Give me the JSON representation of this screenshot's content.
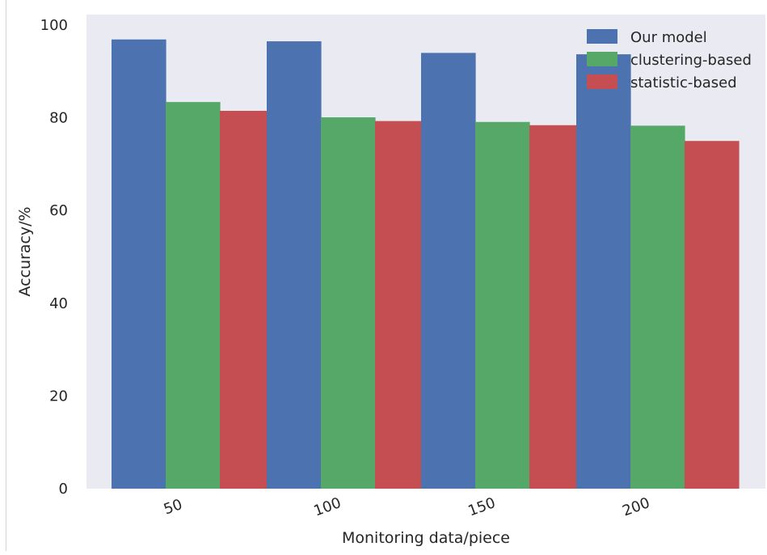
{
  "chart_data": {
    "type": "bar",
    "title": "",
    "xlabel": "Monitoring data/piece",
    "ylabel": "Accuracy/%",
    "categories": [
      "50",
      "100",
      "150",
      "200"
    ],
    "ylim": [
      0,
      100
    ],
    "yticks": [
      "0",
      "20",
      "40",
      "60",
      "80",
      "100"
    ],
    "grid": false,
    "legend_position": "top-right",
    "series": [
      {
        "name": "Our model",
        "color": "#4c72b0",
        "values": [
          96.9,
          96.5,
          94.0,
          93.7
        ]
      },
      {
        "name": "clustering-based",
        "color": "#55a868",
        "values": [
          83.4,
          80.1,
          79.1,
          78.3
        ]
      },
      {
        "name": "statistic-based",
        "color": "#c44e52",
        "values": [
          81.5,
          79.3,
          78.4,
          75.0
        ]
      }
    ]
  },
  "style": {
    "plot_background": "#eaeaf2",
    "page_background": "#ffffff"
  }
}
